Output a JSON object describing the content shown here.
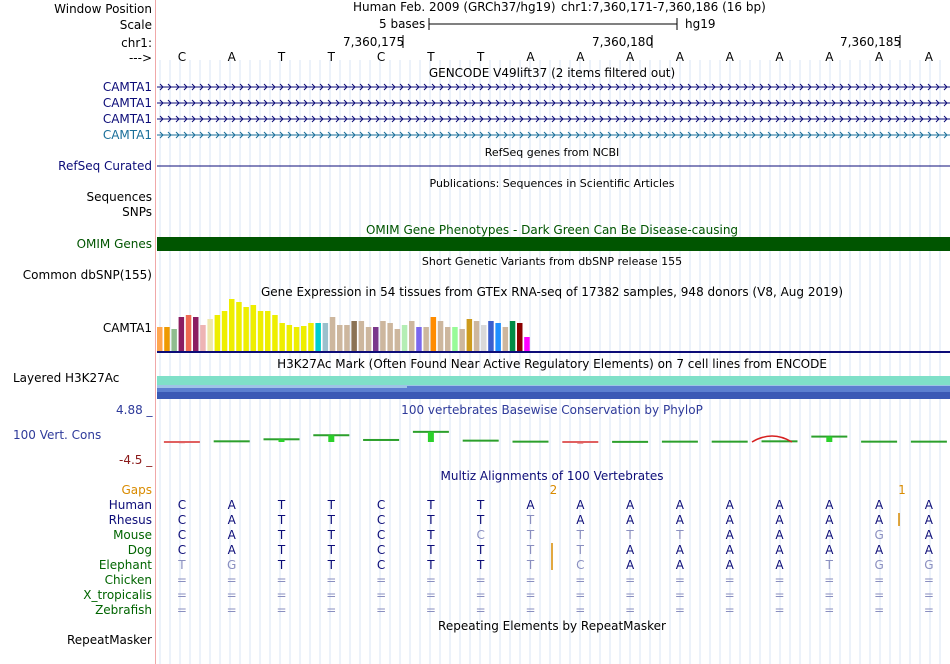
{
  "header": {
    "window_position_label": "Window Position",
    "assembly_text": "Human Feb. 2009 (GRCh37/hg19)",
    "position_text": "chr1:7,360,171-7,360,186 (16 bp)",
    "scale_label": "Scale",
    "scale_text": "5 bases",
    "scale_db": "hg19",
    "chrom_label": "chr1:",
    "coord_ticks": [
      "7,360,175",
      "7,360,180",
      "7,360,185"
    ],
    "strand_label": "--->"
  },
  "sequence": [
    "C",
    "A",
    "T",
    "T",
    "C",
    "T",
    "T",
    "A",
    "A",
    "A",
    "A",
    "A",
    "A",
    "A",
    "A",
    "A"
  ],
  "tracks": {
    "gencode": {
      "title": "GENCODE V49lift37 (2 items filtered out)",
      "genes": [
        "CAMTA1",
        "CAMTA1",
        "CAMTA1",
        "CAMTA1"
      ],
      "gene_colors": [
        "#0c0c78",
        "#0c0c78",
        "#0c0c78",
        "#1a6f9a"
      ]
    },
    "refseq": {
      "label": "RefSeq Curated",
      "title": "RefSeq genes from NCBI"
    },
    "publications": {
      "label": "Sequences",
      "title": "Publications: Sequences in Scientific Articles"
    },
    "snps": {
      "label": "SNPs"
    },
    "omim": {
      "label": "OMIM Genes",
      "title": "OMIM Gene Phenotypes - Dark Green Can Be Disease-causing",
      "color": "#005500"
    },
    "dbsnp": {
      "label": "Common dbSNP(155)",
      "title": "Short Genetic Variants from dbSNP release 155"
    },
    "gtex": {
      "label": "CAMTA1",
      "title": "Gene Expression in 54 tissues from GTEx RNA-seq of 17382 samples, 948 donors (V8, Aug 2019)",
      "values": [
        24,
        24,
        22,
        34,
        36,
        34,
        26,
        32,
        36,
        40,
        52,
        49,
        44,
        46,
        40,
        40,
        36,
        28,
        26,
        24,
        25,
        28,
        28,
        28,
        34,
        26,
        26,
        30,
        30,
        24,
        24,
        30,
        28,
        22,
        26,
        30,
        24,
        24,
        34,
        30,
        24,
        24,
        22,
        32,
        30,
        26,
        30,
        28,
        24,
        30,
        28,
        14
      ],
      "colors": [
        "#ffa54f",
        "#ee9a00",
        "#8fbc8f",
        "#8b1c62",
        "#ee6a50",
        "#8b1c62",
        "#eeb4b4",
        "#eee8aa",
        "#eeee00",
        "#eeee00",
        "#eeee00",
        "#eeee00",
        "#eeee00",
        "#eeee00",
        "#eeee00",
        "#eeee00",
        "#eeee00",
        "#eeee00",
        "#eeee00",
        "#eeee00",
        "#eeee00",
        "#eeee00",
        "#00cdcd",
        "#9ac0cd",
        "#cdb79e",
        "#cdb79e",
        "#cdb79e",
        "#8b7355",
        "#cdb79e",
        "#cdb79e",
        "#7a378b",
        "#cdb79e",
        "#cdb79e",
        "#cdb79e",
        "#b4eeb4",
        "#cdb79e",
        "#7a67ee",
        "#cdb79e",
        "#ff8c00",
        "#cdb79e",
        "#cdb79e",
        "#98fb98",
        "#cdb79e",
        "#cd9b1d",
        "#cdb79e",
        "#d9d9d9",
        "#3a5fcd",
        "#1e90ff",
        "#cdb79e",
        "#008b45",
        "#8b0000",
        "#ff00ff"
      ]
    },
    "h3k27ac": {
      "label": "Layered H3K27Ac",
      "title": "H3K27Ac Mark (Often Found Near Active Regulatory Elements) on 7 cell lines from ENCODE"
    },
    "conservation": {
      "label": "100 Vert. Cons",
      "title": "100 vertebrates Basewise Conservation by PhyloP",
      "max_label": "4.88 _",
      "min_label": "-4.5 _",
      "ylim": [
        -4.5,
        4.88
      ],
      "values": [
        -0.3,
        0.1,
        0.4,
        1.0,
        0.3,
        1.5,
        0.2,
        0.05,
        -0.4,
        0.02,
        0.05,
        0.05,
        0.1,
        0.8,
        0.05,
        0.05
      ]
    },
    "multiz": {
      "title": "Multiz Alignments of 100 Vertebrates",
      "gaps_label": "Gaps",
      "gap_markers": [
        {
          "after_base": 8,
          "value": "2"
        },
        {
          "after_base": 15,
          "value": "1"
        }
      ],
      "species": [
        {
          "name": "Human",
          "seq": [
            "C",
            "A",
            "T",
            "T",
            "C",
            "T",
            "T",
            "A",
            "A",
            "A",
            "A",
            "A",
            "A",
            "A",
            "A",
            "A"
          ]
        },
        {
          "name": "Rhesus",
          "seq": [
            "C",
            "A",
            "T",
            "T",
            "C",
            "T",
            "T",
            "T",
            "A",
            "A",
            "A",
            "A",
            "A",
            "A",
            "A",
            "A"
          ]
        },
        {
          "name": "Mouse",
          "seq": [
            "C",
            "A",
            "T",
            "T",
            "C",
            "T",
            "C",
            "T",
            "T",
            "T",
            "T",
            "A",
            "A",
            "A",
            "G",
            "A"
          ]
        },
        {
          "name": "Dog",
          "seq": [
            "C",
            "A",
            "T",
            "T",
            "C",
            "T",
            "T",
            "T",
            "T",
            "A",
            "A",
            "A",
            "A",
            "A",
            "A",
            "A"
          ]
        },
        {
          "name": "Elephant",
          "seq": [
            "T",
            "G",
            "T",
            "T",
            "C",
            "T",
            "T",
            "T",
            "C",
            "A",
            "A",
            "A",
            "A",
            "T",
            "G",
            "G"
          ]
        },
        {
          "name": "Chicken",
          "seq": [
            "=",
            "=",
            "=",
            "=",
            "=",
            "=",
            "=",
            "=",
            "=",
            "=",
            "=",
            "=",
            "=",
            "=",
            "=",
            "="
          ]
        },
        {
          "name": "X_tropicalis",
          "seq": [
            "=",
            "=",
            "=",
            "=",
            "=",
            "=",
            "=",
            "=",
            "=",
            "=",
            "=",
            "=",
            "=",
            "=",
            "=",
            "="
          ]
        },
        {
          "name": "Zebrafish",
          "seq": [
            "=",
            "=",
            "=",
            "=",
            "=",
            "=",
            "=",
            "=",
            "=",
            "=",
            "=",
            "=",
            "=",
            "=",
            "=",
            "="
          ]
        }
      ]
    },
    "repeatmasker": {
      "label": "RepeatMasker",
      "title": "Repeating Elements by RepeatMasker"
    }
  }
}
